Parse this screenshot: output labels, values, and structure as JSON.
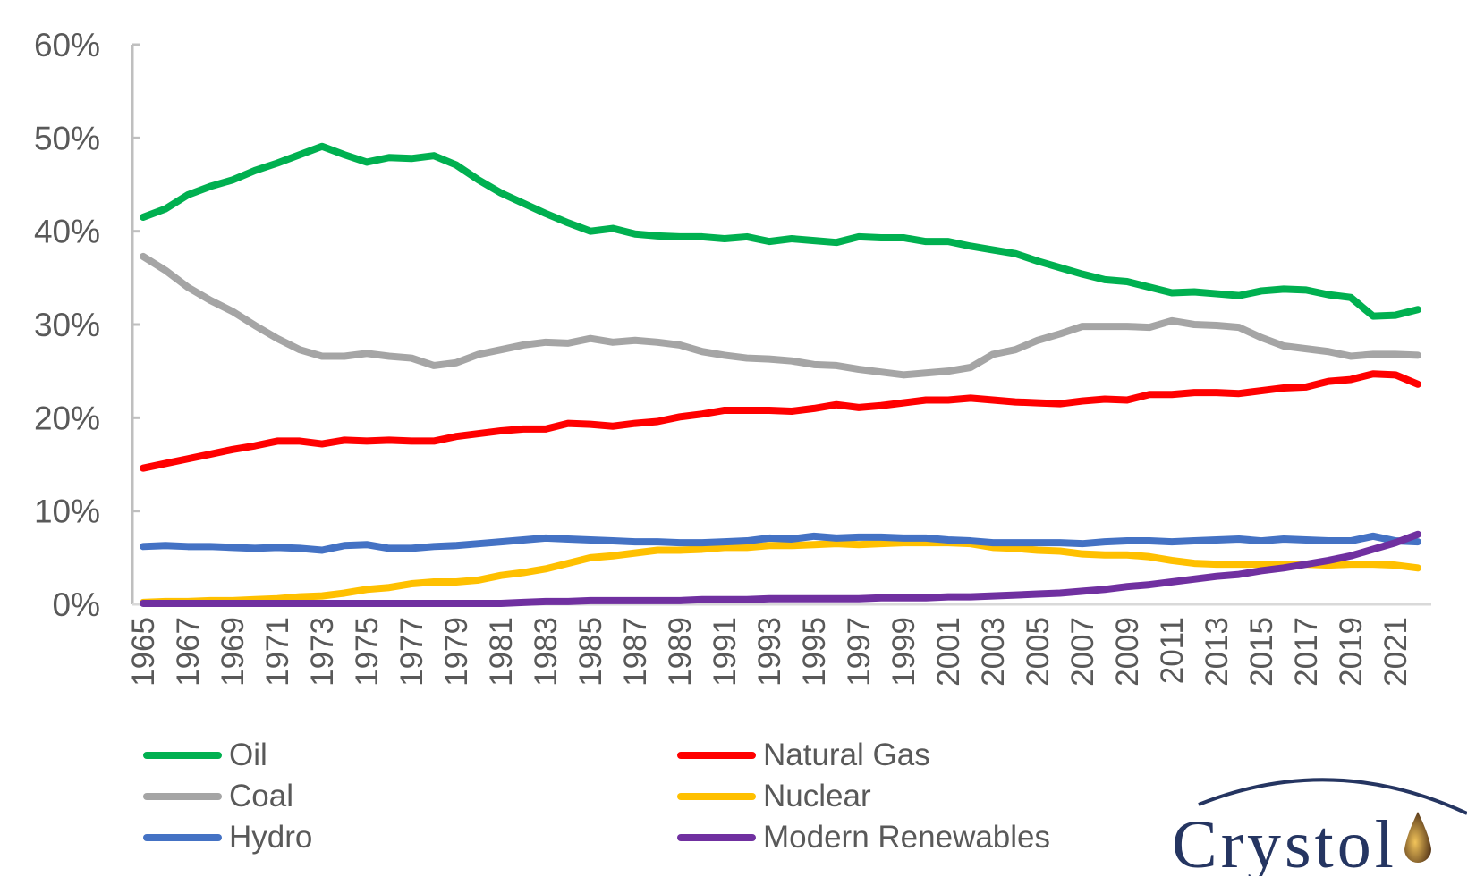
{
  "chart_data": {
    "type": "line",
    "title": "",
    "xlabel": "",
    "ylabel": "",
    "ylim": [
      0,
      60
    ],
    "y_ticks": [
      "0%",
      "10%",
      "20%",
      "30%",
      "40%",
      "50%",
      "60%"
    ],
    "y_tick_values": [
      0,
      10,
      20,
      30,
      40,
      50,
      60
    ],
    "x_tick_labels": [
      "1965",
      "1967",
      "1969",
      "1971",
      "1973",
      "1975",
      "1977",
      "1979",
      "1981",
      "1983",
      "1985",
      "1987",
      "1989",
      "1991",
      "1993",
      "1995",
      "1997",
      "1999",
      "2001",
      "2003",
      "2005",
      "2007",
      "2009",
      "2011",
      "2013",
      "2015",
      "2017",
      "2019",
      "2021"
    ],
    "x": [
      1965,
      1966,
      1967,
      1968,
      1969,
      1970,
      1971,
      1972,
      1973,
      1974,
      1975,
      1976,
      1977,
      1978,
      1979,
      1980,
      1981,
      1982,
      1983,
      1984,
      1985,
      1986,
      1987,
      1988,
      1989,
      1990,
      1991,
      1992,
      1993,
      1994,
      1995,
      1996,
      1997,
      1998,
      1999,
      2000,
      2001,
      2002,
      2003,
      2004,
      2005,
      2006,
      2007,
      2008,
      2009,
      2010,
      2011,
      2012,
      2013,
      2014,
      2015,
      2016,
      2017,
      2018,
      2019,
      2020,
      2021,
      2022
    ],
    "grid": false,
    "legend_position": "bottom",
    "series": [
      {
        "name": "Oil",
        "color": "#00B050",
        "values": [
          41.5,
          42.4,
          43.9,
          44.8,
          45.5,
          46.5,
          47.3,
          48.2,
          49.1,
          48.2,
          47.4,
          47.9,
          47.8,
          48.1,
          47.1,
          45.5,
          44.1,
          43.0,
          41.9,
          40.9,
          40.0,
          40.3,
          39.7,
          39.5,
          39.4,
          39.4,
          39.2,
          39.4,
          38.9,
          39.2,
          39.0,
          38.8,
          39.4,
          39.3,
          39.3,
          38.9,
          38.9,
          38.4,
          38.0,
          37.6,
          36.8,
          36.1,
          35.4,
          34.8,
          34.6,
          34.0,
          33.4,
          33.5,
          33.3,
          33.1,
          33.6,
          33.8,
          33.7,
          33.2,
          32.9,
          30.9,
          31.0,
          31.6
        ]
      },
      {
        "name": "Natural Gas",
        "color": "#FF0000",
        "values": [
          14.6,
          15.1,
          15.6,
          16.1,
          16.6,
          17.0,
          17.5,
          17.5,
          17.2,
          17.6,
          17.5,
          17.6,
          17.5,
          17.5,
          18.0,
          18.3,
          18.6,
          18.8,
          18.8,
          19.4,
          19.3,
          19.1,
          19.4,
          19.6,
          20.1,
          20.4,
          20.8,
          20.8,
          20.8,
          20.7,
          21.0,
          21.4,
          21.1,
          21.3,
          21.6,
          21.9,
          21.9,
          22.1,
          21.9,
          21.7,
          21.6,
          21.5,
          21.8,
          22.0,
          21.9,
          22.5,
          22.5,
          22.7,
          22.7,
          22.6,
          22.9,
          23.2,
          23.3,
          23.9,
          24.1,
          24.7,
          24.6,
          23.6
        ]
      },
      {
        "name": "Coal",
        "color": "#A5A5A5",
        "values": [
          37.3,
          35.8,
          34.0,
          32.6,
          31.4,
          29.9,
          28.5,
          27.3,
          26.6,
          26.6,
          26.9,
          26.6,
          26.4,
          25.6,
          25.9,
          26.8,
          27.3,
          27.8,
          28.1,
          28.0,
          28.5,
          28.1,
          28.3,
          28.1,
          27.8,
          27.1,
          26.7,
          26.4,
          26.3,
          26.1,
          25.7,
          25.6,
          25.2,
          24.9,
          24.6,
          24.8,
          25.0,
          25.4,
          26.8,
          27.3,
          28.3,
          29.0,
          29.8,
          29.8,
          29.8,
          29.7,
          30.4,
          30.0,
          29.9,
          29.7,
          28.6,
          27.7,
          27.4,
          27.1,
          26.6,
          26.8,
          26.8,
          26.7
        ]
      },
      {
        "name": "Nuclear",
        "color": "#FFC000",
        "values": [
          0.2,
          0.3,
          0.3,
          0.4,
          0.4,
          0.5,
          0.6,
          0.8,
          0.9,
          1.2,
          1.6,
          1.8,
          2.2,
          2.4,
          2.4,
          2.6,
          3.1,
          3.4,
          3.8,
          4.4,
          5.0,
          5.2,
          5.5,
          5.8,
          5.8,
          5.9,
          6.1,
          6.1,
          6.3,
          6.3,
          6.4,
          6.5,
          6.4,
          6.5,
          6.6,
          6.6,
          6.6,
          6.5,
          6.1,
          6.0,
          5.8,
          5.7,
          5.4,
          5.3,
          5.3,
          5.1,
          4.7,
          4.4,
          4.3,
          4.3,
          4.3,
          4.3,
          4.3,
          4.2,
          4.3,
          4.3,
          4.2,
          3.9
        ]
      },
      {
        "name": "Hydro",
        "color": "#4472C4",
        "values": [
          6.2,
          6.3,
          6.2,
          6.2,
          6.1,
          6.0,
          6.1,
          6.0,
          5.8,
          6.3,
          6.4,
          6.0,
          6.0,
          6.2,
          6.3,
          6.5,
          6.7,
          6.9,
          7.1,
          7.0,
          6.9,
          6.8,
          6.7,
          6.7,
          6.6,
          6.6,
          6.7,
          6.8,
          7.1,
          7.0,
          7.3,
          7.1,
          7.2,
          7.2,
          7.1,
          7.1,
          6.9,
          6.8,
          6.6,
          6.6,
          6.6,
          6.6,
          6.5,
          6.7,
          6.8,
          6.8,
          6.7,
          6.8,
          6.9,
          7.0,
          6.8,
          7.0,
          6.9,
          6.8,
          6.8,
          7.3,
          6.8,
          6.7
        ]
      },
      {
        "name": "Modern Renewables",
        "color": "#7030A0",
        "values": [
          0.1,
          0.1,
          0.1,
          0.1,
          0.1,
          0.1,
          0.1,
          0.1,
          0.1,
          0.1,
          0.1,
          0.1,
          0.1,
          0.1,
          0.1,
          0.1,
          0.1,
          0.2,
          0.3,
          0.3,
          0.4,
          0.4,
          0.4,
          0.4,
          0.4,
          0.5,
          0.5,
          0.5,
          0.6,
          0.6,
          0.6,
          0.6,
          0.6,
          0.7,
          0.7,
          0.7,
          0.8,
          0.8,
          0.9,
          1.0,
          1.1,
          1.2,
          1.4,
          1.6,
          1.9,
          2.1,
          2.4,
          2.7,
          3.0,
          3.2,
          3.6,
          3.9,
          4.3,
          4.7,
          5.2,
          5.9,
          6.6,
          7.5
        ]
      }
    ],
    "legend_order": [
      "Oil",
      "Natural Gas",
      "Coal",
      "Nuclear",
      "Hydro",
      "Modern Renewables"
    ]
  },
  "logo": {
    "text": "Crystol",
    "color": "#253561"
  }
}
